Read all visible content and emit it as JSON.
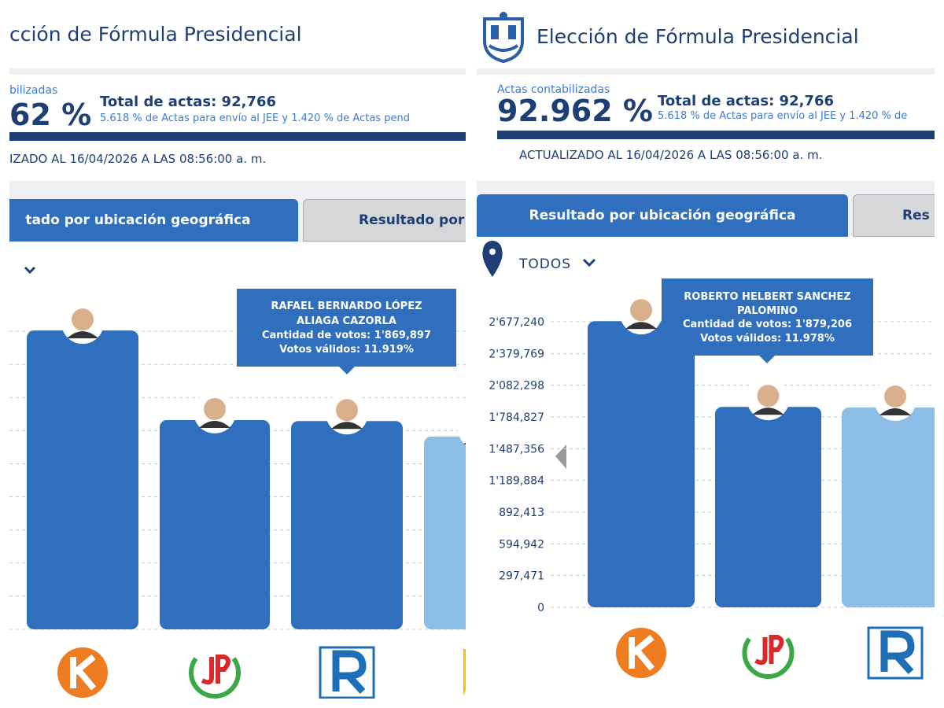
{
  "screens": [
    {
      "title": "cción de Fórmula Presidencial",
      "actas_label": "bilizadas",
      "actas_percent": "62 %",
      "total": "Total de actas: 92,766",
      "note": "5.618 % de Actas para envío al JEE y 1.420 % de Actas pend",
      "updated": "IZADO AL 16/04/2026 A LAS 08:56:00 a. m.",
      "tabs": [
        "tado por ubicación geográfica",
        "Resultado por"
      ],
      "chart": {
        "type": "bar",
        "ylim": [
          0,
          2677240
        ],
        "yticks": [
          0,
          297471,
          594942,
          892413,
          1189884,
          1487356,
          1784827,
          2082298,
          2379769,
          2677240
        ],
        "bars": [
          {
            "value": 2683000,
            "color": "#2f6fbe"
          },
          {
            "value": 1879206,
            "color": "#2f6fbe"
          },
          {
            "value": 1869897,
            "color": "#2f6fbe"
          },
          {
            "value": 1731000,
            "color": "#8bbde6"
          }
        ],
        "tooltip": [
          "RAFAEL BERNARDO LÓPEZ",
          "ALIAGA CAZORLA",
          "Cantidad de votos: 1'869,897",
          "Votos válidos: 11.919%"
        ]
      }
    },
    {
      "title": "Elección de Fórmula Presidencial",
      "actas_label": "Actas contabilizadas",
      "actas_percent": "92.962 %",
      "total": "Total de actas: 92,766",
      "note": "5.618 % de Actas para envío al JEE y 1.420 % de",
      "updated": "ACTUALIZADO AL 16/04/2026 A LAS 08:56:00 a. m.",
      "tabs": [
        "Resultado por ubicación geográfica",
        "Res"
      ],
      "location": "TODOS",
      "chart": {
        "type": "bar",
        "ylim": [
          0,
          2677240
        ],
        "yticks": [
          0,
          {
            "value": 297471,
            "label": "297,471"
          },
          {
            "value": 594942,
            "label": "594,942"
          },
          {
            "value": 892413,
            "label": "892,413"
          },
          {
            "value": 1189884,
            "label": "1'189,884"
          },
          {
            "value": 1487356,
            "label": "1'487,356"
          },
          {
            "value": 1784827,
            "label": "1'784,827"
          },
          {
            "value": 2082298,
            "label": "2'082,298"
          },
          {
            "value": 2379769,
            "label": "2'379,769"
          },
          {
            "value": 2677240,
            "label": "2'677,240"
          }
        ],
        "bars": [
          {
            "value": 2683000,
            "color": "#2f6fbe"
          },
          {
            "value": 1879206,
            "color": "#2f6fbe"
          },
          {
            "value": 1873000,
            "color": "#8bbde6"
          }
        ],
        "tooltip": [
          "ROBERTO HELBERT SANCHEZ",
          "PALOMINO",
          "Cantidad de votos: 1'879,206",
          "Votos válidos: 11.978%"
        ]
      }
    }
  ]
}
